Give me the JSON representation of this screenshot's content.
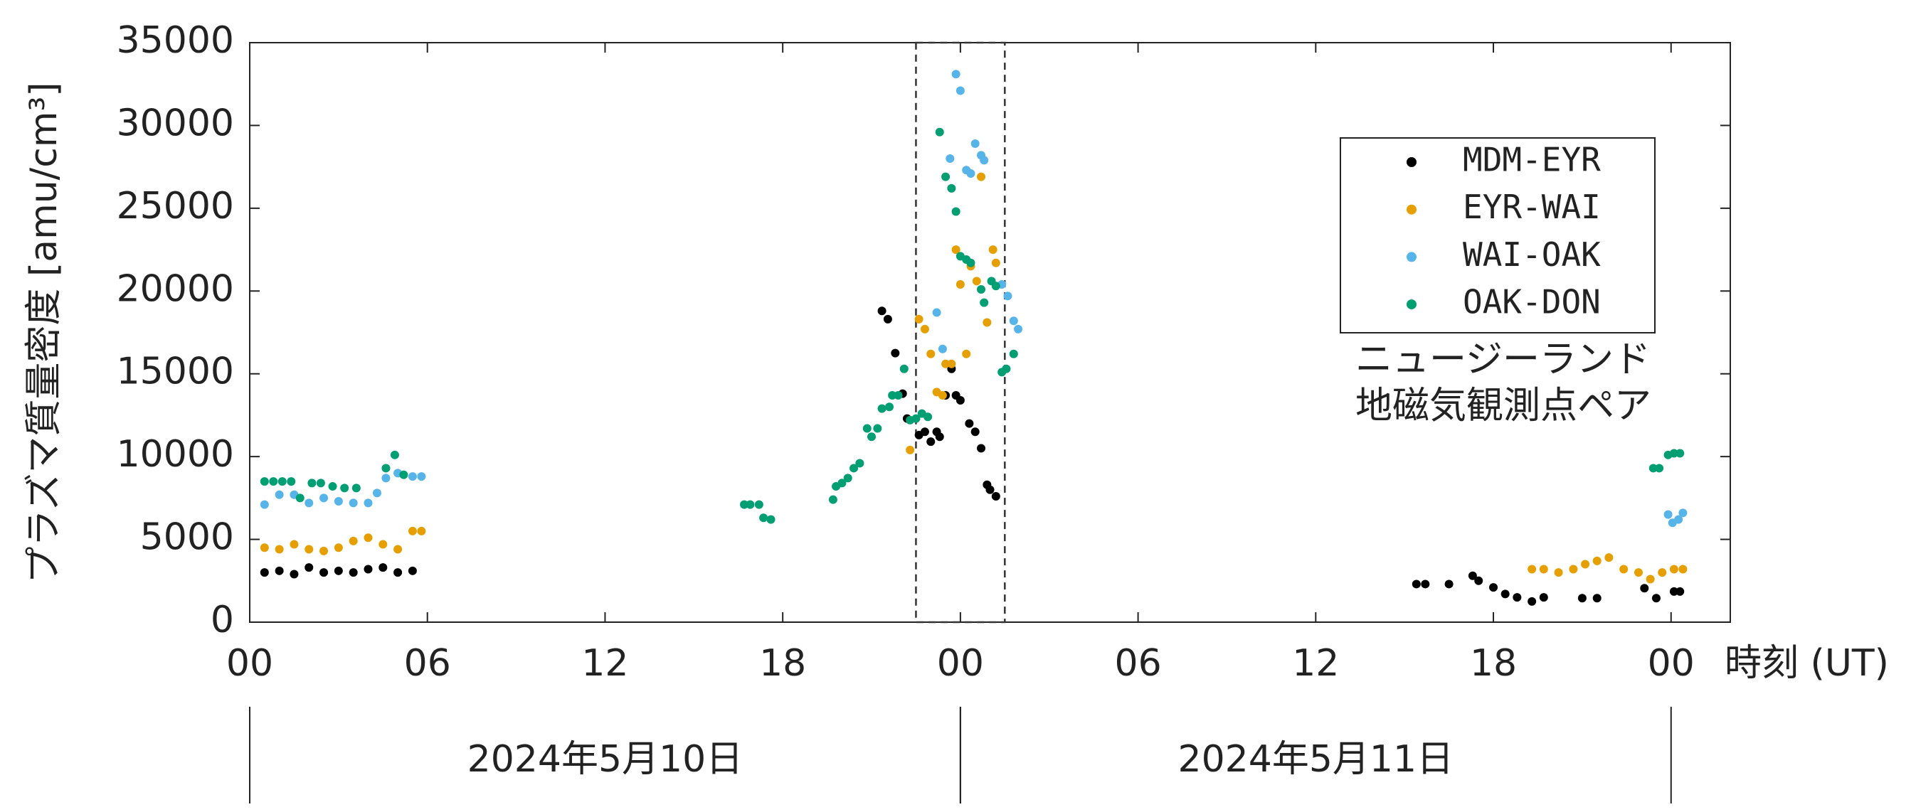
{
  "chart_data": {
    "type": "scatter",
    "ylabel": "プラズマ質量密度 [amu/cm³]",
    "xlabel": "時刻 (UT)",
    "annotation": [
      "ニュージーランド",
      "地磁気観測点ペア"
    ],
    "xlim": [
      0,
      50
    ],
    "ylim": [
      0,
      35000
    ],
    "xticks": [
      {
        "value": 0,
        "label": "00"
      },
      {
        "value": 6,
        "label": "06"
      },
      {
        "value": 12,
        "label": "12"
      },
      {
        "value": 18,
        "label": "18"
      },
      {
        "value": 24,
        "label": "00"
      },
      {
        "value": 30,
        "label": "06"
      },
      {
        "value": 36,
        "label": "12"
      },
      {
        "value": 42,
        "label": "18"
      },
      {
        "value": 48,
        "label": "00"
      }
    ],
    "yticks": [
      0,
      5000,
      10000,
      15000,
      20000,
      25000,
      30000,
      35000
    ],
    "highlight_x": [
      22.5,
      25.5
    ],
    "days": [
      {
        "label": "2024年5月10日",
        "start": 0,
        "end": 24
      },
      {
        "label": "2024年5月11日",
        "start": 24,
        "end": 48
      }
    ],
    "series": [
      {
        "name": "MDM-EYR",
        "color": "#000000",
        "x": [
          0.5,
          1,
          1.5,
          2,
          2.5,
          3,
          3.5,
          4,
          4.5,
          5,
          5.5,
          21.35,
          21.55,
          21.8,
          22.05,
          22.2,
          22.6,
          22.8,
          23.0,
          23.2,
          23.3,
          23.5,
          23.7,
          23.85,
          24.0,
          24.3,
          24.5,
          24.7,
          24.9,
          25.0,
          25.2,
          39.4,
          39.7,
          40.5,
          41.3,
          41.5,
          42.0,
          42.4,
          42.8,
          43.3,
          43.7,
          45.0,
          45.5,
          47.1,
          47.5,
          48.1,
          48.3
        ],
        "values": [
          3000,
          3100,
          2900,
          3300,
          3000,
          3100,
          3000,
          3200,
          3300,
          3000,
          3100,
          18800,
          18300,
          16250,
          13800,
          12300,
          11300,
          11500,
          10900,
          11500,
          11200,
          13700,
          15300,
          13700,
          13400,
          12000,
          11500,
          10500,
          8300,
          8000,
          7600,
          2300,
          2300,
          2300,
          2800,
          2500,
          2100,
          1700,
          1500,
          1250,
          1500,
          1450,
          1450,
          2050,
          1450,
          1850,
          1850
        ]
      },
      {
        "name": "EYR-WAI",
        "color": "#e69f00",
        "x": [
          0.5,
          1,
          1.5,
          2,
          2.5,
          3,
          3.5,
          4,
          4.5,
          5,
          5.5,
          5.8,
          22.3,
          22.6,
          22.8,
          23.0,
          23.2,
          23.4,
          23.5,
          23.7,
          23.85,
          24.0,
          24.2,
          24.35,
          24.55,
          24.7,
          24.9,
          25.1,
          25.2,
          43.3,
          43.7,
          44.2,
          44.7,
          45.1,
          45.5,
          45.9,
          46.4,
          46.9,
          47.3,
          47.7,
          48.1,
          48.4
        ],
        "values": [
          4500,
          4400,
          4700,
          4400,
          4300,
          4500,
          4900,
          5100,
          4700,
          4400,
          5500,
          5500,
          10400,
          18300,
          17700,
          16200,
          13900,
          13700,
          15600,
          15600,
          22500,
          20400,
          16200,
          21500,
          20600,
          26900,
          18100,
          22500,
          21700,
          3200,
          3200,
          3000,
          3200,
          3500,
          3700,
          3900,
          3200,
          3000,
          2600,
          3000,
          3200,
          3200
        ]
      },
      {
        "name": "WAI-OAK",
        "color": "#56b4e9",
        "x": [
          0.5,
          1,
          1.5,
          2,
          2.5,
          3,
          3.5,
          4,
          4.3,
          4.6,
          5,
          5.5,
          5.8,
          23.2,
          23.4,
          23.65,
          23.85,
          24.0,
          24.2,
          24.35,
          24.5,
          24.7,
          24.8,
          25.4,
          25.6,
          25.8,
          25.95,
          47.9,
          48.05,
          48.25,
          48.4
        ],
        "values": [
          7100,
          7700,
          7700,
          7200,
          7500,
          7300,
          7200,
          7200,
          7800,
          8700,
          9000,
          8800,
          8800,
          18700,
          16500,
          28000,
          33100,
          32100,
          27300,
          27100,
          28900,
          28200,
          27900,
          20400,
          19700,
          18200,
          17700,
          6500,
          6000,
          6200,
          6600
        ]
      },
      {
        "name": "OAK-DON",
        "color": "#009e73",
        "x": [
          0.5,
          0.8,
          1.1,
          1.4,
          1.7,
          2.1,
          2.4,
          2.8,
          3.2,
          3.6,
          4.6,
          4.9,
          5.2,
          16.7,
          16.9,
          17.2,
          17.35,
          17.6,
          19.7,
          19.8,
          20.0,
          20.2,
          20.4,
          20.6,
          20.85,
          21.0,
          21.2,
          21.35,
          21.6,
          21.7,
          21.9,
          22.1,
          22.3,
          22.5,
          22.7,
          22.9,
          23.3,
          23.5,
          23.7,
          23.85,
          24.0,
          24.2,
          24.35,
          24.7,
          24.8,
          25.05,
          25.2,
          25.4,
          25.55,
          25.8,
          47.4,
          47.6,
          47.9,
          48.1,
          48.3
        ],
        "values": [
          8500,
          8500,
          8500,
          8500,
          7500,
          8400,
          8400,
          8200,
          8100,
          8100,
          9300,
          10100,
          8900,
          7100,
          7100,
          7100,
          6300,
          6200,
          7400,
          8200,
          8400,
          8700,
          9300,
          9600,
          11700,
          11200,
          11700,
          12900,
          13000,
          13700,
          13700,
          15300,
          12200,
          12300,
          12600,
          12400,
          29600,
          26900,
          26200,
          24800,
          22100,
          21900,
          21700,
          20100,
          19300,
          20600,
          20300,
          15100,
          15300,
          16200,
          9300,
          9300,
          10100,
          10200,
          10200
        ]
      }
    ]
  }
}
